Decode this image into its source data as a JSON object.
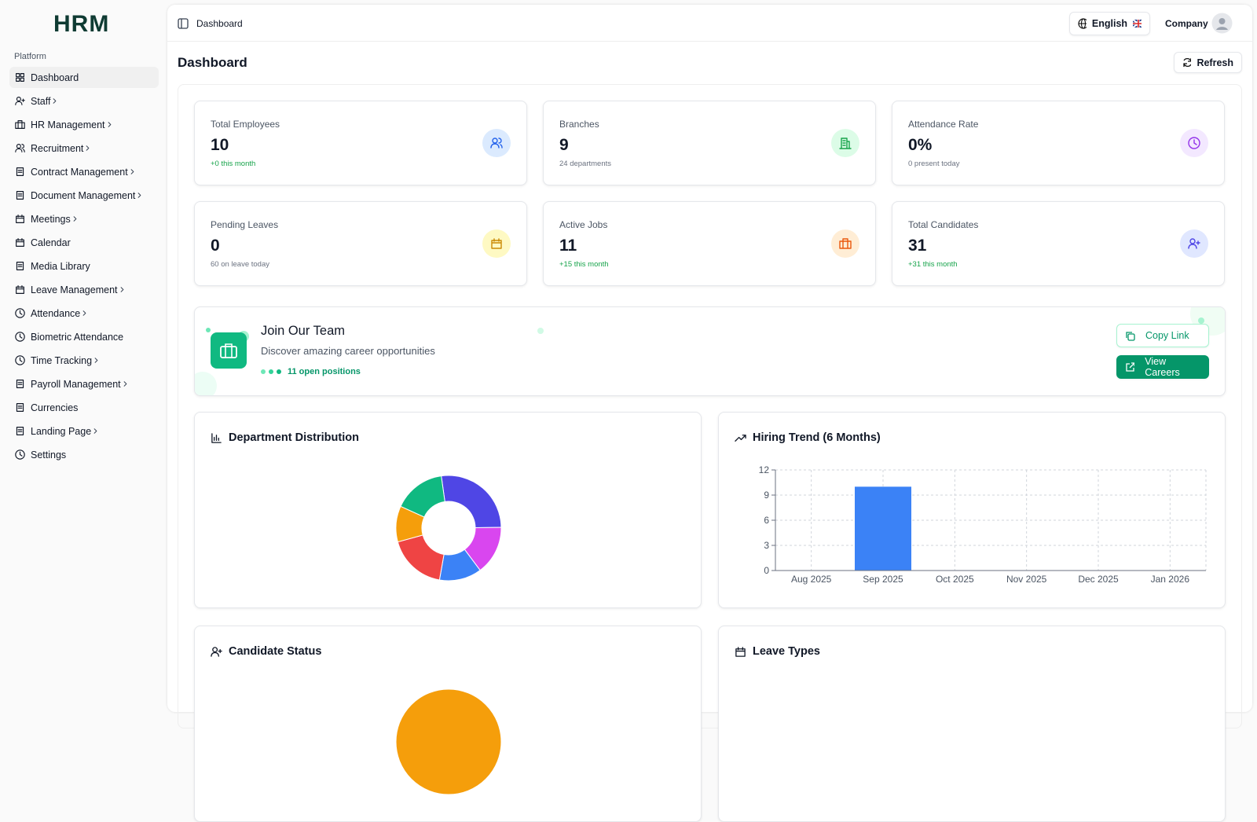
{
  "sidebar": {
    "logo": "HRM",
    "section": "Platform",
    "items": [
      {
        "label": "Dashboard",
        "has_submenu": false,
        "active": true
      },
      {
        "label": "Staff",
        "has_submenu": true
      },
      {
        "label": "HR Management",
        "has_submenu": true
      },
      {
        "label": "Recruitment",
        "has_submenu": true
      },
      {
        "label": "Contract Management",
        "has_submenu": true
      },
      {
        "label": "Document Management",
        "has_submenu": true
      },
      {
        "label": "Meetings",
        "has_submenu": true
      },
      {
        "label": "Calendar",
        "has_submenu": false
      },
      {
        "label": "Media Library",
        "has_submenu": false
      },
      {
        "label": "Leave Management",
        "has_submenu": true
      },
      {
        "label": "Attendance",
        "has_submenu": true
      },
      {
        "label": "Biometric Attendance",
        "has_submenu": false
      },
      {
        "label": "Time Tracking",
        "has_submenu": true
      },
      {
        "label": "Payroll Management",
        "has_submenu": true
      },
      {
        "label": "Currencies",
        "has_submenu": false
      },
      {
        "label": "Landing Page",
        "has_submenu": true
      },
      {
        "label": "Settings",
        "has_submenu": false
      }
    ]
  },
  "header": {
    "breadcrumb": "Dashboard",
    "language": "English",
    "user": "Company"
  },
  "page": {
    "title": "Dashboard",
    "refresh": "Refresh"
  },
  "stats": [
    {
      "label": "Total Employees",
      "value": "10",
      "note": "+0 this month",
      "note_color": "#16a34a",
      "icon_color": "#2563eb",
      "icon_bg": "#dbeafe"
    },
    {
      "label": "Branches",
      "value": "9",
      "note": "24 departments",
      "note_color": "#6b7280",
      "icon_color": "#16a34a",
      "icon_bg": "#dcfce7"
    },
    {
      "label": "Attendance Rate",
      "value": "0%",
      "note": "0 present today",
      "note_color": "#6b7280",
      "icon_color": "#9333ea",
      "icon_bg": "#f3e8ff"
    },
    {
      "label": "Pending Leaves",
      "value": "0",
      "note": "60 on leave today",
      "note_color": "#6b7280",
      "icon_color": "#ca8a04",
      "icon_bg": "#fef9c3"
    },
    {
      "label": "Active Jobs",
      "value": "11",
      "note": "+15 this month",
      "note_color": "#16a34a",
      "icon_color": "#ea580c",
      "icon_bg": "#ffedd5"
    },
    {
      "label": "Total Candidates",
      "value": "31",
      "note": "+31 this month",
      "note_color": "#16a34a",
      "icon_color": "#4f46e5",
      "icon_bg": "#e0e7ff"
    }
  ],
  "join": {
    "title": "Join Our Team",
    "subtitle": "Discover amazing career opportunities",
    "positions": "11 open positions",
    "copy_link": "Copy Link",
    "view_careers": "View Careers"
  },
  "chart_data": [
    {
      "type": "donut",
      "title": "Department Distribution",
      "values": [
        27,
        15,
        13,
        18,
        11,
        16
      ],
      "colors": [
        "#4f46e5",
        "#d946ef",
        "#3b82f6",
        "#ef4444",
        "#f59e0b",
        "#10b981"
      ]
    },
    {
      "type": "bar",
      "title": "Hiring Trend (6 Months)",
      "categories": [
        "Aug 2025",
        "Sep 2025",
        "Oct 2025",
        "Nov 2025",
        "Dec 2025",
        "Jan 2026"
      ],
      "values": [
        0,
        10,
        0,
        0,
        0,
        0
      ],
      "color": "#3b82f6",
      "ylim": [
        0,
        12
      ],
      "yticks": [
        0,
        3,
        6,
        9,
        12
      ],
      "grid": true
    },
    {
      "type": "pie",
      "title": "Candidate Status",
      "values": [
        100
      ],
      "colors": [
        "#f59e0b"
      ]
    },
    {
      "type": "pie",
      "title": "Leave Types"
    }
  ]
}
